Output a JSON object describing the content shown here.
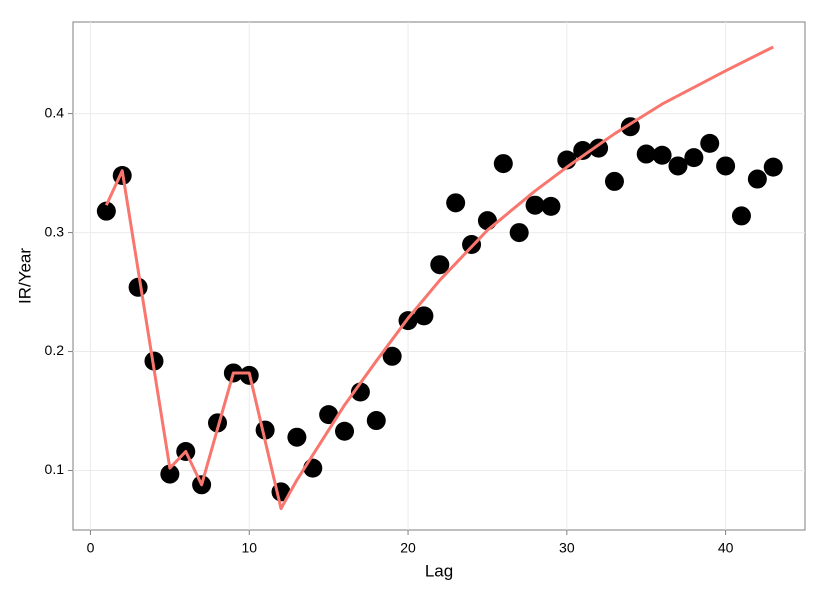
{
  "chart_data": {
    "type": "scatter",
    "x_label": "Lag",
    "y_label": "IR/Year",
    "xlim": [
      -1.1,
      45.0
    ],
    "ylim": [
      0.05,
      0.477
    ],
    "xticks": [
      0,
      10,
      20,
      30,
      40
    ],
    "yticks": [
      0.1,
      0.2,
      0.3,
      0.4
    ],
    "grid": true,
    "series": [
      {
        "type": "scatter",
        "color": "#000000",
        "x": [
          1,
          2,
          3,
          4,
          5,
          6,
          7,
          8,
          9,
          10,
          11,
          12,
          13,
          14,
          15,
          16,
          17,
          18,
          19,
          20,
          21,
          22,
          23,
          24,
          25,
          26,
          27,
          28,
          29,
          30,
          31,
          32,
          33,
          34,
          35,
          36,
          37,
          38,
          39,
          40,
          41,
          42,
          43
        ],
        "values": [
          0.318,
          0.348,
          0.254,
          0.192,
          0.097,
          0.116,
          0.088,
          0.14,
          0.182,
          0.18,
          0.134,
          0.082,
          0.128,
          0.102,
          0.147,
          0.133,
          0.166,
          0.142,
          0.196,
          0.226,
          0.23,
          0.273,
          0.325,
          0.29,
          0.31,
          0.358,
          0.3,
          0.323,
          0.322,
          0.361,
          0.369,
          0.371,
          0.343,
          0.389,
          0.366,
          0.365,
          0.356,
          0.363,
          0.375,
          0.356,
          0.314,
          0.345,
          0.355
        ]
      },
      {
        "type": "line",
        "color": "#F8766D",
        "x": [
          1,
          2,
          5,
          6,
          7,
          9,
          10,
          12,
          13,
          14,
          16,
          18,
          20,
          22,
          25,
          28,
          30,
          33,
          36,
          40,
          43
        ],
        "values": [
          0.323,
          0.352,
          0.102,
          0.116,
          0.088,
          0.182,
          0.182,
          0.068,
          0.092,
          0.113,
          0.155,
          0.192,
          0.228,
          0.26,
          0.302,
          0.335,
          0.355,
          0.383,
          0.408,
          0.436,
          0.456
        ]
      }
    ]
  }
}
